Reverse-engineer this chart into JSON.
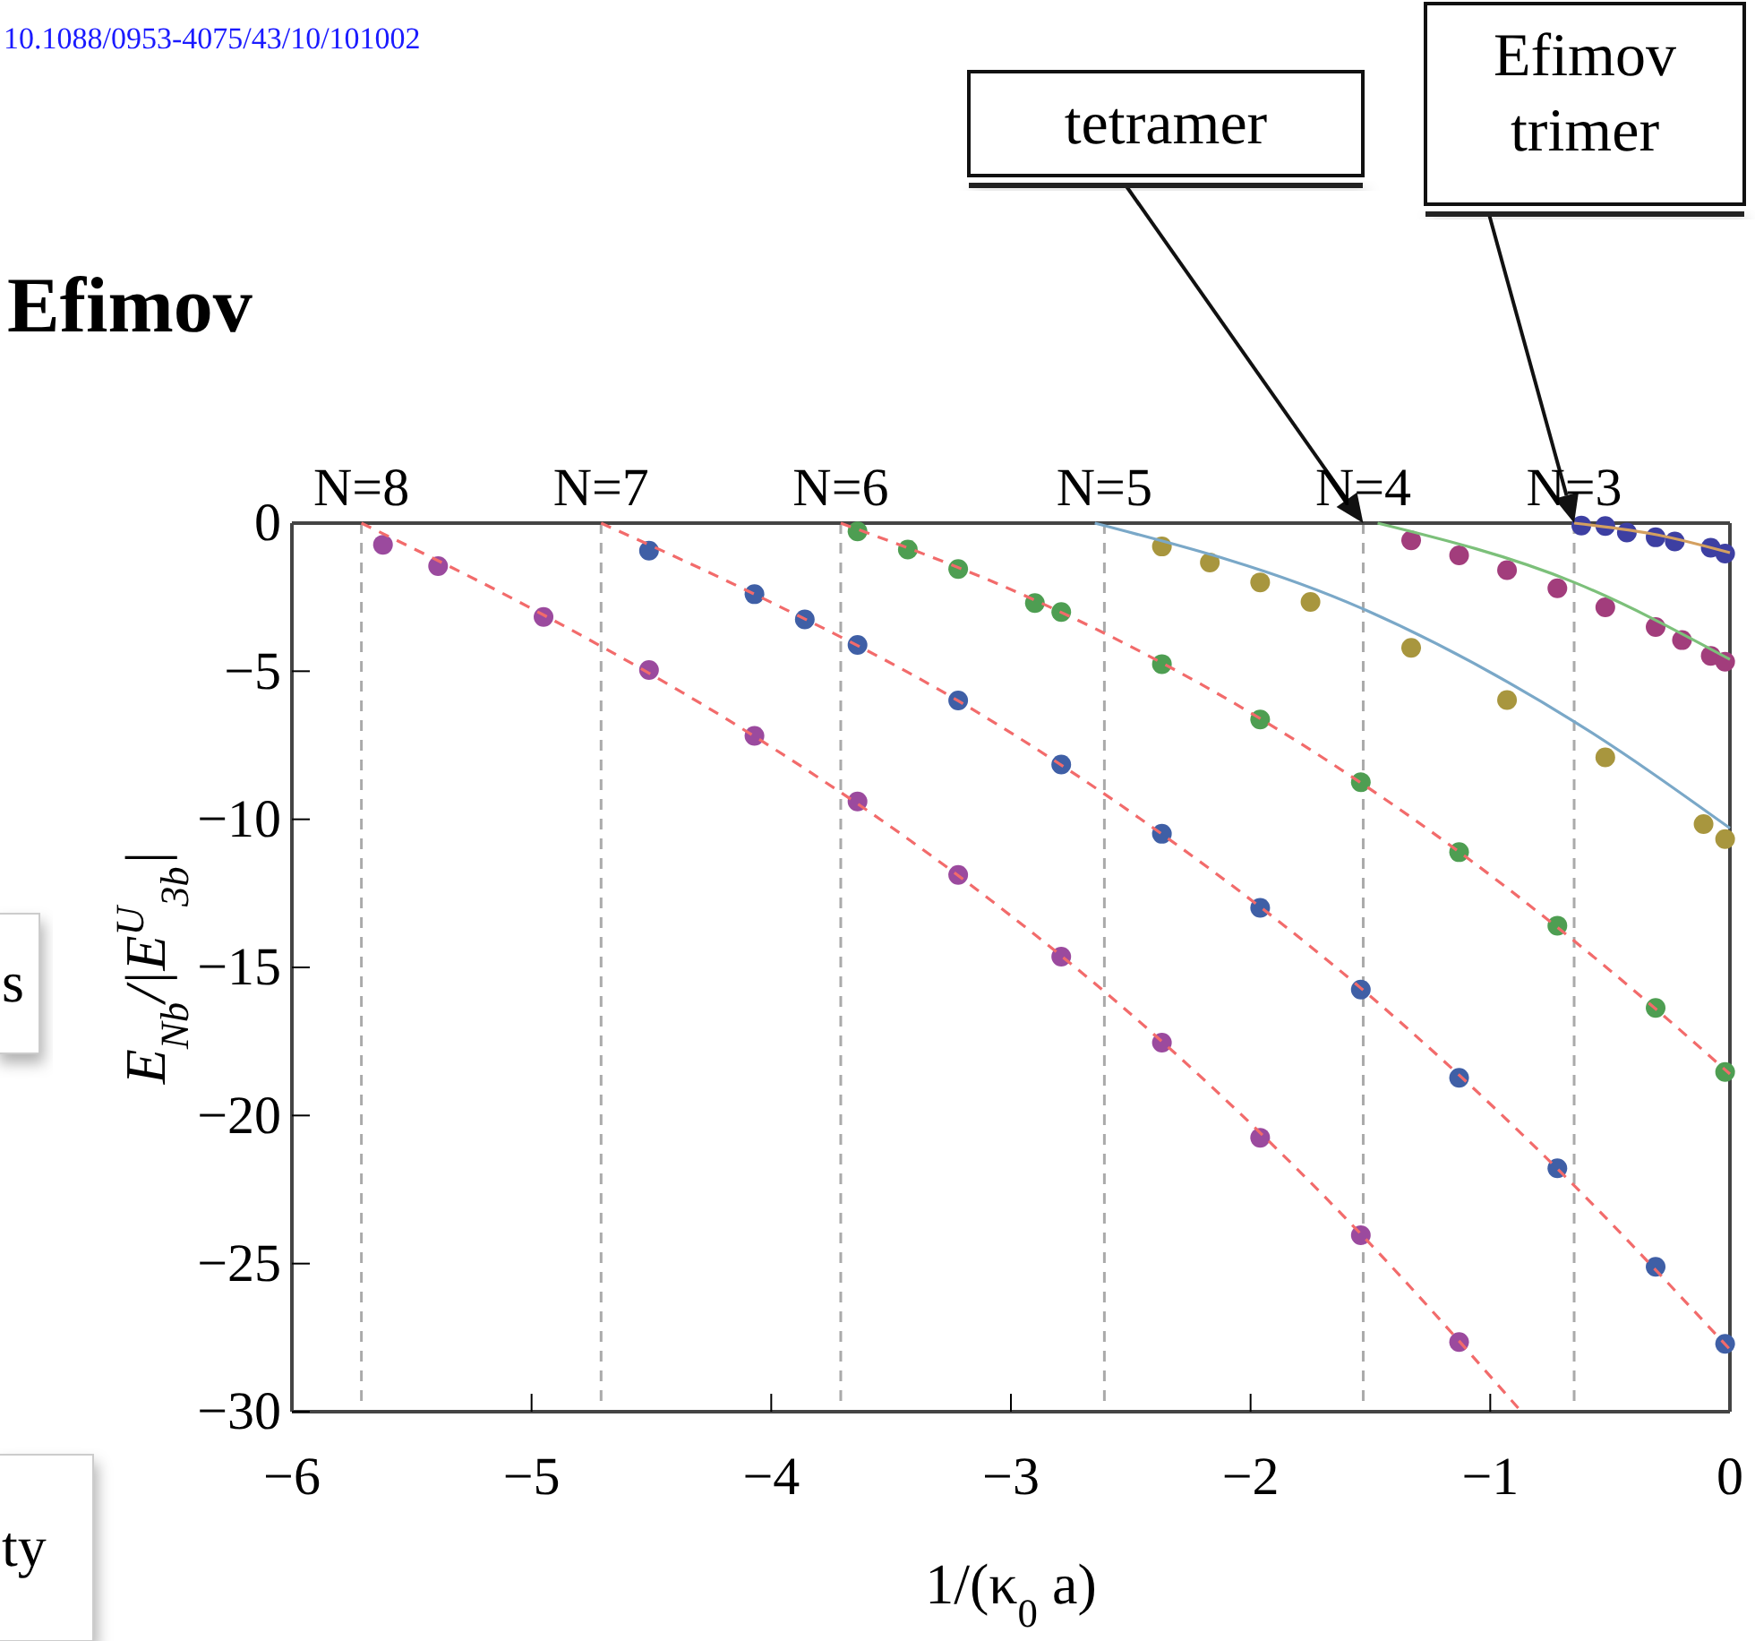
{
  "chart_data": {
    "type": "scatter",
    "title": "Efimov",
    "xlabel": "1/(κ$_{0}$ a)",
    "ylabel": "E$_{Nb}$/|E$^{U}$$_{3b}$|",
    "xlim": [
      -6,
      0
    ],
    "ylim": [
      -30,
      0
    ],
    "xticks": [
      -6,
      -5,
      -4,
      -3,
      -2,
      -1,
      0
    ],
    "yticks": [
      -30,
      -25,
      -20,
      -15,
      -10,
      -5,
      0
    ],
    "grid": false,
    "marker": "circle",
    "ref_lines": [
      {
        "axis": "x",
        "value": -5.71,
        "color": "#aaaaaa",
        "line_style": "dashed"
      },
      {
        "axis": "x",
        "value": -4.71,
        "color": "#aaaaaa",
        "line_style": "dashed"
      },
      {
        "axis": "x",
        "value": -3.71,
        "color": "#aaaaaa",
        "line_style": "dashed"
      },
      {
        "axis": "x",
        "value": -2.61,
        "color": "#aaaaaa",
        "line_style": "dashed"
      },
      {
        "axis": "x",
        "value": -1.53,
        "color": "#aaaaaa",
        "line_style": "dashed"
      },
      {
        "axis": "x",
        "value": -0.65,
        "color": "#aaaaaa",
        "line_style": "dashed"
      }
    ],
    "annotations": [
      "10.1088/0953-4075/43/10/101002",
      "s",
      "ty",
      "tetramer",
      "Efimov trimer",
      {
        "text": "N=8",
        "x": -5.71,
        "y": 0
      },
      {
        "text": "N=7",
        "x": -4.71,
        "y": 0
      },
      {
        "text": "N=6",
        "x": -3.71,
        "y": 0
      },
      {
        "text": "N=5",
        "x": -2.61,
        "y": 0
      },
      {
        "text": "N=4",
        "x": -1.53,
        "y": 0
      },
      {
        "text": "N=3",
        "x": -0.65,
        "y": 0
      }
    ],
    "series": [
      {
        "type": "line",
        "marker": "none",
        "color": "#f26b6b",
        "line_style": "dashed",
        "x": [
          -5.71,
          -4.95,
          -4.07,
          -3.22,
          -2.37,
          -1.54,
          -0.87
        ],
        "values": [
          0,
          -3.1,
          -7.2,
          -11.9,
          -17.5,
          -24.0,
          -30
        ]
      },
      {
        "type": "line",
        "marker": "none",
        "color": "#f26b6b",
        "line_style": "dashed",
        "x": [
          -4.71,
          -4.07,
          -3.22,
          -2.37,
          -1.54,
          -0.72,
          0
        ],
        "values": [
          0,
          -2.4,
          -6.0,
          -10.5,
          -15.7,
          -21.8,
          -27.9
        ]
      },
      {
        "type": "line",
        "marker": "none",
        "color": "#f26b6b",
        "line_style": "dashed",
        "x": [
          -3.71,
          -2.9,
          -1.96,
          -1.13,
          -0.31,
          0
        ],
        "values": [
          0,
          -2.6,
          -6.6,
          -11.1,
          -16.4,
          -18.6
        ]
      },
      {
        "type": "line",
        "marker": "none",
        "color": "#7aa8c8",
        "line_style": "solid",
        "x": [
          -2.65,
          -1.53,
          -0.65,
          0
        ],
        "values": [
          0,
          -2.9,
          -6.7,
          -10.3
        ]
      },
      {
        "type": "line",
        "marker": "none",
        "color": "#7cc07a",
        "line_style": "solid",
        "x": [
          -1.47,
          -0.65,
          0
        ],
        "values": [
          0,
          -2.0,
          -4.6
        ]
      },
      {
        "type": "line",
        "marker": "none",
        "color": "#d4a060",
        "line_style": "solid",
        "x": [
          -0.65,
          -0.3,
          0
        ],
        "values": [
          0,
          -0.4,
          -1.0
        ]
      },
      {
        "color": "#9b4a9e",
        "x": [
          -5.62,
          -5.39,
          -4.95,
          -4.51,
          -4.07,
          -3.64,
          -3.22,
          -2.79,
          -2.37,
          -1.96,
          -1.54,
          -1.13
        ],
        "values": [
          -0.73,
          -1.45,
          -3.17,
          -4.96,
          -7.18,
          -9.4,
          -11.88,
          -14.64,
          -17.54,
          -20.75,
          -24.04,
          -27.65
        ]
      },
      {
        "color": "#3f5fa6",
        "x": [
          -4.51,
          -4.07,
          -3.86,
          -3.64,
          -3.22,
          -2.79,
          -2.37,
          -1.96,
          -1.54,
          -1.13,
          -0.72,
          -0.31,
          -0.02
        ],
        "values": [
          -0.93,
          -2.4,
          -3.25,
          -4.11,
          -5.99,
          -8.15,
          -10.49,
          -12.99,
          -15.75,
          -18.73,
          -21.78,
          -25.11,
          -27.71
        ]
      },
      {
        "color": "#4e9e52",
        "x": [
          -3.64,
          -3.43,
          -3.22,
          -2.9,
          -2.79,
          -2.37,
          -1.96,
          -1.54,
          -1.13,
          -0.72,
          -0.31,
          -0.02
        ],
        "values": [
          -0.28,
          -0.89,
          -1.55,
          -2.7,
          -3.0,
          -4.76,
          -6.63,
          -8.75,
          -11.11,
          -13.59,
          -16.37,
          -18.53
        ]
      },
      {
        "color": "#a8963e",
        "x": [
          -2.37,
          -2.17,
          -1.96,
          -1.75,
          -1.33,
          -0.93,
          -0.52,
          -0.11,
          -0.02
        ],
        "values": [
          -0.79,
          -1.33,
          -2.0,
          -2.66,
          -4.21,
          -5.97,
          -7.91,
          -10.16,
          -10.67
        ]
      },
      {
        "color": "#a23d7c",
        "x": [
          -1.33,
          -1.13,
          -0.93,
          -0.72,
          -0.52,
          -0.31,
          -0.2,
          -0.08,
          -0.02
        ],
        "values": [
          -0.58,
          -1.09,
          -1.59,
          -2.2,
          -2.84,
          -3.51,
          -3.95,
          -4.48,
          -4.68
        ]
      },
      {
        "color": "#3d3fa2",
        "x": [
          -0.62,
          -0.52,
          -0.43,
          -0.31,
          -0.23,
          -0.08,
          -0.02
        ],
        "values": [
          -0.08,
          -0.1,
          -0.32,
          -0.48,
          -0.62,
          -0.83,
          -1.03
        ]
      }
    ]
  }
}
